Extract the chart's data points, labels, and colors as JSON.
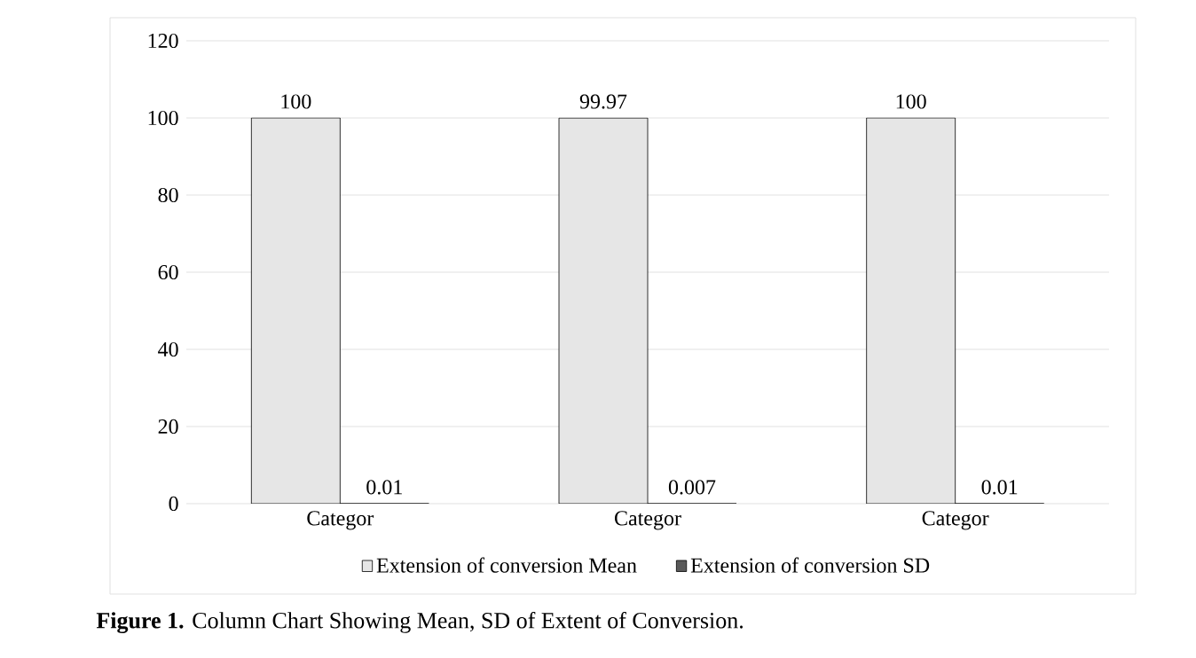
{
  "chart_data": {
    "type": "bar",
    "categories": [
      "Categor",
      "Categor",
      "Categor"
    ],
    "series": [
      {
        "name": "Extension of conversion Mean",
        "color": "#e6e6e6",
        "values": [
          100,
          99.97,
          100
        ]
      },
      {
        "name": "Extension of conversion SD",
        "color": "#595959",
        "values": [
          0.01,
          0.007,
          0.01
        ]
      }
    ],
    "ylim": [
      0,
      120
    ],
    "yticks": [
      0,
      20,
      40,
      60,
      80,
      100,
      120
    ],
    "grid": "y",
    "legend": "bottom",
    "data_labels": true,
    "annotations": [
      "**Figure 1.** Column Chart Showing Mean, SD of Extent of Conversion."
    ]
  }
}
